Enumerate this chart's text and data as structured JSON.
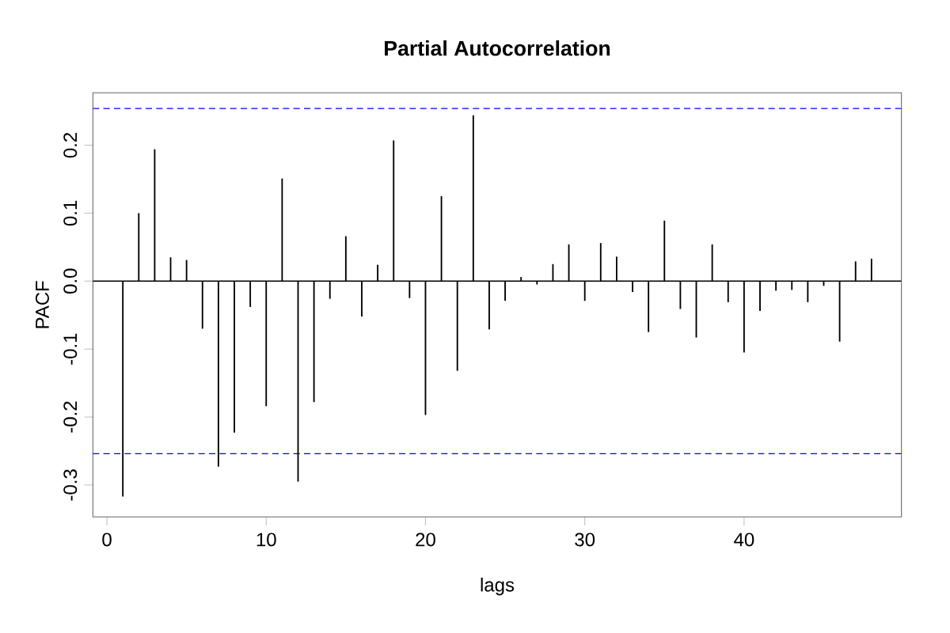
{
  "chart_data": {
    "type": "bar",
    "title": "Partial Autocorrelation",
    "xlabel": "lags",
    "ylabel": "PACF",
    "x": [
      1,
      2,
      3,
      4,
      5,
      6,
      7,
      8,
      9,
      10,
      11,
      12,
      13,
      14,
      15,
      16,
      17,
      18,
      19,
      20,
      21,
      22,
      23,
      24,
      25,
      26,
      27,
      28,
      29,
      30,
      31,
      32,
      33,
      34,
      35,
      36,
      37,
      38,
      39,
      40,
      41,
      42,
      43,
      44,
      45,
      46,
      47,
      48
    ],
    "values": [
      -0.317,
      0.1,
      0.194,
      0.035,
      0.031,
      -0.07,
      -0.273,
      -0.223,
      -0.038,
      -0.184,
      0.151,
      -0.295,
      -0.178,
      -0.026,
      0.066,
      -0.052,
      0.024,
      0.207,
      -0.025,
      -0.197,
      0.125,
      -0.132,
      0.244,
      -0.071,
      -0.029,
      0.006,
      -0.005,
      0.025,
      0.054,
      -0.029,
      0.056,
      0.036,
      -0.016,
      -0.075,
      0.089,
      -0.041,
      -0.083,
      0.054,
      -0.031,
      -0.105,
      -0.044,
      -0.014,
      -0.013,
      -0.031,
      -0.007,
      -0.089,
      0.029,
      0.033
    ],
    "color": "#000000",
    "xlim": [
      -0.88,
      49.88
    ],
    "ylim": [
      -0.347,
      0.277
    ],
    "xticks": [
      0,
      10,
      20,
      30,
      40
    ],
    "yticks": [
      -0.3,
      -0.2,
      -0.1,
      {
        "value": 0,
        "label": "0.0"
      },
      0.1,
      0.2
    ],
    "ref_lines": [
      {
        "axis": "y",
        "value": 0,
        "color": "#000000",
        "line_style": "solid"
      },
      {
        "axis": "y",
        "value": 0.254,
        "color": "#0000ff",
        "line_style": "dashed"
      },
      {
        "axis": "y",
        "value": -0.254,
        "color": "#0000ff",
        "line_style": "dashed"
      }
    ],
    "grid": false
  }
}
